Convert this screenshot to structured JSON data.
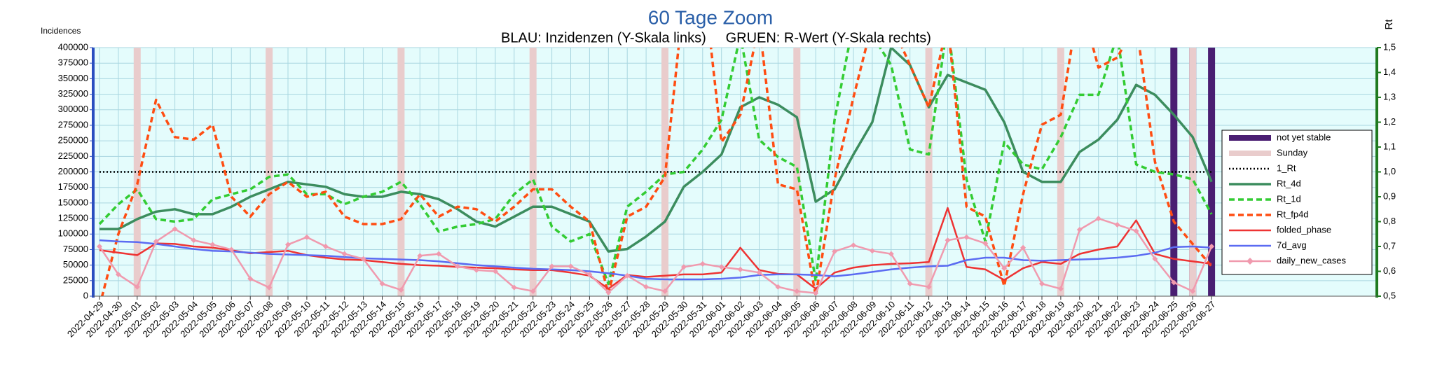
{
  "chart_data": {
    "type": "line",
    "title": "60 Tage Zoom",
    "subtitle": "BLAU: Inzidenzen (Y-Skala links)     GRUEN: R-Wert (Y-Skala rechts)",
    "y_label": "Incidences",
    "y2_label": "Rt",
    "categories": [
      "2022-04-29",
      "2022-04-30",
      "2022-05-01",
      "2022-05-02",
      "2022-05-03",
      "2022-05-04",
      "2022-05-05",
      "2022-05-06",
      "2022-05-07",
      "2022-05-08",
      "2022-05-09",
      "2022-05-10",
      "2022-05-11",
      "2022-05-12",
      "2022-05-13",
      "2022-05-14",
      "2022-05-15",
      "2022-05-16",
      "2022-05-17",
      "2022-05-18",
      "2022-05-19",
      "2022-05-20",
      "2022-05-21",
      "2022-05-22",
      "2022-05-23",
      "2022-05-24",
      "2022-05-25",
      "2022-05-26",
      "2022-05-27",
      "2022-05-28",
      "2022-05-29",
      "2022-05-30",
      "2022-05-31",
      "2022-06-01",
      "2022-06-02",
      "2022-06-03",
      "2022-06-04",
      "2022-06-05",
      "2022-06-06",
      "2022-06-07",
      "2022-06-08",
      "2022-06-09",
      "2022-06-10",
      "2022-06-11",
      "2022-06-12",
      "2022-06-13",
      "2022-06-14",
      "2022-06-15",
      "2022-06-16",
      "2022-06-17",
      "2022-06-18",
      "2022-06-19",
      "2022-06-20",
      "2022-06-21",
      "2022-06-22",
      "2022-06-23",
      "2022-06-24",
      "2022-06-25",
      "2022-06-26",
      "2022-06-27"
    ],
    "ylim": [
      0,
      400000
    ],
    "yticks": [
      0,
      25000,
      50000,
      75000,
      100000,
      125000,
      150000,
      175000,
      200000,
      225000,
      250000,
      275000,
      300000,
      325000,
      350000,
      375000,
      400000
    ],
    "y2lim": [
      0.5,
      1.5
    ],
    "y2ticks": [
      {
        "value": 0.5,
        "label": "0,5"
      },
      {
        "value": 0.6,
        "label": "0,6"
      },
      {
        "value": 0.7,
        "label": "0,7"
      },
      {
        "value": 0.8,
        "label": "0,8"
      },
      {
        "value": 0.9,
        "label": "0,9"
      },
      {
        "value": 1.0,
        "label": "1,0"
      },
      {
        "value": 1.1,
        "label": "1,1"
      },
      {
        "value": 1.2,
        "label": "1,2"
      },
      {
        "value": 1.3,
        "label": "1,3"
      },
      {
        "value": 1.4,
        "label": "1,4"
      },
      {
        "value": 1.5,
        "label": "1,5"
      }
    ],
    "grid": true,
    "legend": "right",
    "series": [
      {
        "name": "not yet stable",
        "kind": "band",
        "color": "#4a1e72",
        "dates": [
          "2022-06-25",
          "2022-06-26",
          "2022-06-27"
        ]
      },
      {
        "name": "Sunday",
        "kind": "band",
        "color": "#e9cccc",
        "dates": [
          "2022-05-01",
          "2022-05-08",
          "2022-05-15",
          "2022-05-22",
          "2022-05-29",
          "2022-06-05",
          "2022-06-12",
          "2022-06-19",
          "2022-06-26"
        ]
      },
      {
        "name": "1_Rt",
        "axis": "y2",
        "color": "#000000",
        "line_style": "dotted",
        "values": [
          1,
          1,
          1,
          1,
          1,
          1,
          1,
          1,
          1,
          1,
          1,
          1,
          1,
          1,
          1,
          1,
          1,
          1,
          1,
          1,
          1,
          1,
          1,
          1,
          1,
          1,
          1,
          1,
          1,
          1,
          1,
          1,
          1,
          1,
          1,
          1,
          1,
          1,
          1,
          1,
          1,
          1,
          1,
          1,
          1,
          1,
          1,
          1,
          1,
          1,
          1,
          1,
          1,
          1,
          1,
          1,
          1,
          1,
          1,
          1
        ]
      },
      {
        "name": "Rt_4d",
        "axis": "y2",
        "color": "#3c8d5e",
        "line_style": "solid",
        "values": [
          0.77,
          0.77,
          0.81,
          0.84,
          0.85,
          0.83,
          0.83,
          0.86,
          0.9,
          0.93,
          0.96,
          0.95,
          0.94,
          0.91,
          0.9,
          0.9,
          0.92,
          0.91,
          0.89,
          0.85,
          0.8,
          0.78,
          0.82,
          0.86,
          0.86,
          0.83,
          0.8,
          0.68,
          0.69,
          0.74,
          0.8,
          0.94,
          1.0,
          1.07,
          1.26,
          1.3,
          1.27,
          1.22,
          0.88,
          0.93,
          1.07,
          1.2,
          1.5,
          1.43,
          1.26,
          1.39,
          1.36,
          1.33,
          1.2,
          1.0,
          0.96,
          0.96,
          1.08,
          1.13,
          1.21,
          1.35,
          1.31,
          1.23,
          1.14,
          0.96
        ]
      },
      {
        "name": "Rt_1d",
        "axis": "y2",
        "color": "#33cc33",
        "line_style": "dashed",
        "values": [
          0.79,
          0.87,
          0.93,
          0.81,
          0.8,
          0.81,
          0.89,
          0.91,
          0.93,
          0.98,
          0.99,
          0.91,
          0.91,
          0.87,
          0.9,
          0.92,
          0.96,
          0.87,
          0.76,
          0.78,
          0.79,
          0.81,
          0.91,
          0.97,
          0.78,
          0.72,
          0.75,
          0.55,
          0.86,
          0.92,
          0.99,
          1.0,
          1.09,
          1.21,
          1.55,
          1.13,
          1.06,
          1.02,
          0.56,
          1.21,
          1.6,
          1.55,
          1.43,
          1.09,
          1.07,
          1.6,
          0.97,
          0.72,
          1.12,
          1.03,
          1.01,
          1.14,
          1.31,
          1.31,
          1.55,
          1.03,
          1.0,
          0.99,
          0.97,
          0.83
        ]
      },
      {
        "name": "Rt_fp4d",
        "axis": "y2",
        "color": "#ff4d12",
        "line_style": "dashed",
        "values": [
          0.46,
          0.75,
          0.95,
          1.29,
          1.14,
          1.13,
          1.19,
          0.9,
          0.82,
          0.91,
          0.96,
          0.9,
          0.92,
          0.82,
          0.79,
          0.79,
          0.81,
          0.91,
          0.82,
          0.86,
          0.85,
          0.8,
          0.86,
          0.93,
          0.93,
          0.86,
          0.8,
          0.51,
          0.82,
          0.86,
          0.98,
          1.7,
          1.8,
          1.12,
          1.23,
          1.6,
          0.95,
          0.93,
          0.5,
          0.97,
          1.3,
          1.6,
          1.6,
          1.43,
          1.26,
          1.6,
          0.86,
          0.82,
          0.54,
          0.91,
          1.19,
          1.23,
          1.7,
          1.42,
          1.46,
          1.6,
          1.04,
          0.8,
          0.71,
          0.62
        ]
      },
      {
        "name": "folded_phase",
        "axis": "y",
        "color": "#ee3333",
        "line_style": "solid",
        "values": [
          74000,
          70000,
          66000,
          85000,
          84000,
          80000,
          78000,
          74000,
          69000,
          71000,
          73000,
          66000,
          62000,
          59000,
          58000,
          55000,
          52000,
          50000,
          49000,
          47000,
          46000,
          45000,
          43000,
          42000,
          42000,
          38000,
          33000,
          12000,
          34000,
          31000,
          33000,
          35000,
          35000,
          38000,
          78000,
          42000,
          36000,
          35000,
          12000,
          38000,
          46000,
          50000,
          52000,
          53000,
          55000,
          142000,
          47000,
          43000,
          26000,
          45000,
          55000,
          52000,
          68000,
          75000,
          80000,
          122000,
          68000,
          60000,
          56000,
          52000
        ]
      },
      {
        "name": "7d_avg",
        "axis": "y",
        "color": "#5b6bf2",
        "line_style": "solid",
        "values": [
          90000,
          88000,
          87000,
          84000,
          80000,
          76000,
          73000,
          72000,
          70000,
          68000,
          67000,
          66000,
          65000,
          63000,
          61000,
          60000,
          59000,
          58000,
          56000,
          53000,
          50000,
          48000,
          46000,
          44000,
          43000,
          42000,
          40000,
          37000,
          33000,
          28000,
          27000,
          27000,
          27000,
          28000,
          30000,
          34000,
          35000,
          35000,
          34000,
          32000,
          35000,
          39000,
          43000,
          46000,
          48000,
          49000,
          58000,
          62000,
          62000,
          58000,
          57000,
          58000,
          59000,
          60000,
          62000,
          65000,
          70000,
          79000,
          80000,
          78000
        ]
      },
      {
        "name": "daily_new_cases",
        "axis": "y",
        "color": "#f09aae",
        "line_style": "solid",
        "marker": "diamond",
        "values": [
          80000,
          35000,
          15000,
          88000,
          108000,
          90000,
          83000,
          75000,
          28000,
          14000,
          83000,
          95000,
          80000,
          68000,
          60000,
          20000,
          10000,
          65000,
          68000,
          48000,
          42000,
          40000,
          14000,
          8000,
          48000,
          48000,
          35000,
          6000,
          33000,
          15000,
          8000,
          47000,
          52000,
          47000,
          43000,
          38000,
          15000,
          8000,
          5000,
          72000,
          82000,
          73000,
          68000,
          20000,
          15000,
          90000,
          95000,
          85000,
          45000,
          78000,
          20000,
          12000,
          107000,
          125000,
          115000,
          105000,
          60000,
          22000,
          8000,
          80000
        ]
      }
    ]
  }
}
